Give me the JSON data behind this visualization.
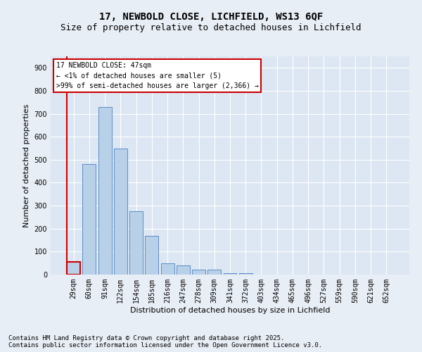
{
  "title": "17, NEWBOLD CLOSE, LICHFIELD, WS13 6QF",
  "subtitle": "Size of property relative to detached houses in Lichfield",
  "xlabel": "Distribution of detached houses by size in Lichfield",
  "ylabel": "Number of detached properties",
  "footnote1": "Contains HM Land Registry data © Crown copyright and database right 2025.",
  "footnote2": "Contains public sector information licensed under the Open Government Licence v3.0.",
  "categories": [
    "29sqm",
    "60sqm",
    "91sqm",
    "122sqm",
    "154sqm",
    "185sqm",
    "216sqm",
    "247sqm",
    "278sqm",
    "309sqm",
    "341sqm",
    "372sqm",
    "403sqm",
    "434sqm",
    "465sqm",
    "496sqm",
    "527sqm",
    "559sqm",
    "590sqm",
    "621sqm",
    "652sqm"
  ],
  "values": [
    55,
    480,
    730,
    550,
    275,
    170,
    50,
    40,
    20,
    20,
    5,
    5,
    0,
    0,
    0,
    0,
    0,
    0,
    0,
    0,
    0
  ],
  "bar_color": "#b8d0e8",
  "bar_edge_color": "#5b8dc8",
  "highlight_color": "#cc0000",
  "annotation_box_text": "17 NEWBOLD CLOSE: 47sqm\n← <1% of detached houses are smaller (5)\n>99% of semi-detached houses are larger (2,366) →",
  "annotation_box_color": "#cc0000",
  "ylim": [
    0,
    950
  ],
  "yticks": [
    0,
    100,
    200,
    300,
    400,
    500,
    600,
    700,
    800,
    900
  ],
  "background_color": "#e8eef5",
  "plot_bg_color": "#dce7f3",
  "grid_color": "#ffffff",
  "title_fontsize": 10,
  "subtitle_fontsize": 9,
  "label_fontsize": 8,
  "tick_fontsize": 7,
  "footnote_fontsize": 6.5
}
